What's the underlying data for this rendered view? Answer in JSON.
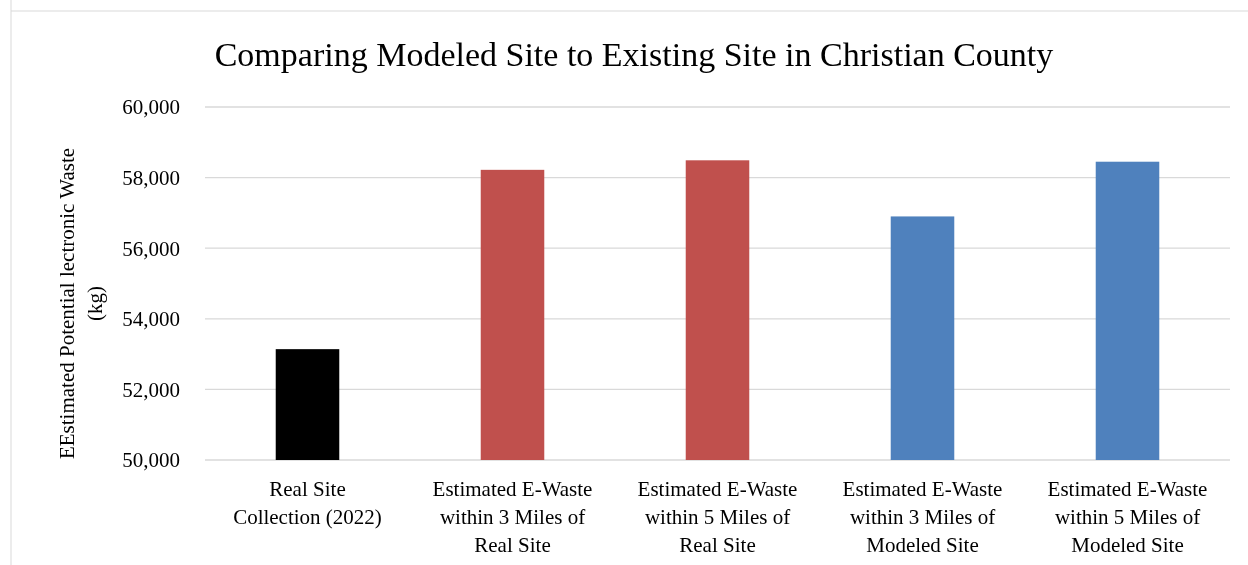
{
  "chart_data": {
    "type": "bar",
    "title": "Comparing Modeled Site to Existing Site in Christian County",
    "ylabel": "EEstimated Potential lectronic Waste (kg)",
    "categories": [
      "Real Site Collection (2022)",
      "Estimated E-Waste within 3 Miles of Real Site",
      "Estimated E-Waste within 5 Miles of Real Site",
      "Estimated E-Waste within 3 Miles of Modeled Site",
      "Estimated E-Waste within 5 Miles of Modeled Site"
    ],
    "values": [
      53140,
      58220,
      58490,
      56900,
      58450
    ],
    "colors": [
      "#000000",
      "#c0504d",
      "#c0504d",
      "#4f81bd",
      "#4f81bd"
    ],
    "ylim": [
      50000,
      60000
    ],
    "yticks": [
      {
        "value": 50000,
        "label": "50,000"
      },
      {
        "value": 52000,
        "label": "52,000"
      },
      {
        "value": 54000,
        "label": "54,000"
      },
      {
        "value": 56000,
        "label": "56,000"
      },
      {
        "value": 58000,
        "label": "58,000"
      },
      {
        "value": 60000,
        "label": "60,000"
      }
    ],
    "grid": "y"
  }
}
